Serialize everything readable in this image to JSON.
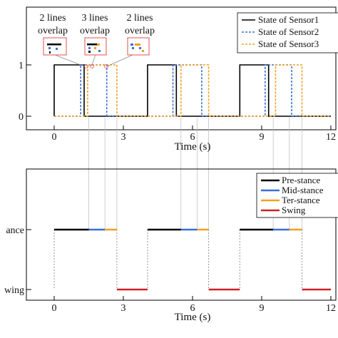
{
  "chart_data": [
    {
      "type": "line",
      "xlabel": "Time (s)",
      "ylabel": "",
      "xlim": [
        -1.5,
        12
      ],
      "ylim": [
        -0.2,
        2.05
      ],
      "x_ticks": [
        "0",
        "3",
        "6",
        "9",
        "12"
      ],
      "y_ticks": [
        "0",
        "1"
      ],
      "legend_position": "top-right",
      "series": [
        {
          "name": "State of Sensor1",
          "color": "#000000",
          "dash": "solid",
          "x": [
            0,
            0.0,
            1.3,
            1.3,
            3.0,
            3.0,
            4.05,
            4.05,
            5.3,
            5.3,
            7.0,
            7.0,
            8.05,
            8.05,
            9.3,
            9.3,
            12
          ],
          "y": [
            0,
            1,
            1,
            0,
            0,
            0,
            0,
            1,
            1,
            0,
            0,
            0,
            0,
            1,
            1,
            0,
            0
          ]
        },
        {
          "name": "State of Sensor2",
          "color": "#3a6fd6",
          "dash": "dashed",
          "x": [
            0,
            1.15,
            1.15,
            2.28,
            2.28,
            5.15,
            5.15,
            6.4,
            6.4,
            9.15,
            9.15,
            10.3,
            10.3,
            12
          ],
          "y": [
            0,
            0,
            1,
            1,
            0,
            0,
            1,
            1,
            0,
            0,
            1,
            1,
            0,
            0
          ]
        },
        {
          "name": "State of Sensor3",
          "color": "#f0a020",
          "dash": "dashed",
          "x": [
            0,
            1.45,
            1.45,
            2.72,
            2.72,
            5.5,
            5.5,
            6.7,
            6.7,
            9.6,
            9.6,
            10.75,
            10.75,
            12
          ],
          "y": [
            0,
            0,
            1,
            1,
            0,
            0,
            1,
            1,
            0,
            0,
            1,
            1,
            0,
            0
          ]
        }
      ],
      "annotations": [
        {
          "lines": [
            "2 lines",
            "overlap"
          ]
        },
        {
          "lines": [
            "3 lines",
            "overlap"
          ]
        },
        {
          "lines": [
            "2 lines",
            "overlap"
          ]
        }
      ]
    },
    {
      "type": "line",
      "xlabel": "Time (s)",
      "ylabel": "",
      "xlim": [
        -1.5,
        12
      ],
      "x_ticks": [
        "0",
        "3",
        "6",
        "9",
        "12"
      ],
      "y_categories": [
        "Stance",
        "Swing"
      ],
      "y_tick_labels_visible": [
        "ance",
        "wing"
      ],
      "legend_position": "top-right",
      "series": [
        {
          "name": "Pre-stance",
          "color": "#000000",
          "segments": [
            [
              0,
              1.5
            ],
            [
              4.05,
              5.5
            ],
            [
              8.05,
              9.5
            ]
          ],
          "level": "Stance"
        },
        {
          "name": "Mid-stance",
          "color": "#3a6fd6",
          "segments": [
            [
              1.5,
              2.2
            ],
            [
              5.5,
              6.2
            ],
            [
              9.5,
              10.2
            ]
          ],
          "level": "Stance"
        },
        {
          "name": "Ter-stance",
          "color": "#f0a020",
          "segments": [
            [
              2.2,
              2.72
            ],
            [
              6.2,
              6.7
            ],
            [
              10.2,
              10.75
            ]
          ],
          "level": "Stance"
        },
        {
          "name": "Swing",
          "color": "#cc2222",
          "segments": [
            [
              2.72,
              4.05
            ],
            [
              6.7,
              8.05
            ],
            [
              10.75,
              12
            ]
          ],
          "level": "Swing"
        }
      ]
    }
  ]
}
